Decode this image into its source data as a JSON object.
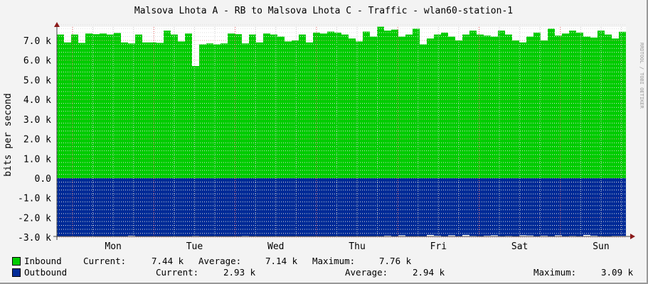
{
  "chart_data": {
    "type": "area",
    "title": "Malsova Lhota A - RB to Malsova Lhota C - Traffic - wlan60-station-1",
    "ylabel": "bits per second",
    "side_label": "RRDTOOL / TOBI OETIKER",
    "ylim": [
      -3000,
      7800
    ],
    "yticks": [
      {
        "v": 7000,
        "l": "7.0 k"
      },
      {
        "v": 6000,
        "l": "6.0 k"
      },
      {
        "v": 5000,
        "l": "5.0 k"
      },
      {
        "v": 4000,
        "l": "4.0 k"
      },
      {
        "v": 3000,
        "l": "3.0 k"
      },
      {
        "v": 2000,
        "l": "2.0 k"
      },
      {
        "v": 1000,
        "l": "1.0 k"
      },
      {
        "v": 0,
        "l": "0.0"
      },
      {
        "v": -1000,
        "l": "-1.0 k"
      },
      {
        "v": -2000,
        "l": "-2.0 k"
      },
      {
        "v": -3000,
        "l": "-3.0 k"
      }
    ],
    "xticks": [
      "Mon",
      "Tue",
      "Wed",
      "Thu",
      "Fri",
      "Sat",
      "Sun"
    ],
    "grid": true,
    "series": [
      {
        "name": "Inbound",
        "color": "#00cc00",
        "values": [
          7300,
          6900,
          7300,
          6880,
          7350,
          7320,
          7350,
          7300,
          7380,
          6900,
          6850,
          7300,
          6900,
          6900,
          6880,
          7500,
          7300,
          6950,
          7350,
          5700,
          6800,
          6850,
          6800,
          6850,
          7350,
          7320,
          6850,
          7300,
          6900,
          7350,
          7300,
          7200,
          6950,
          7000,
          7300,
          6900,
          7400,
          7350,
          7450,
          7400,
          7300,
          7100,
          6950,
          7450,
          7200,
          7700,
          7500,
          7550,
          7200,
          7300,
          7600,
          6800,
          7100,
          7300,
          7400,
          7200,
          7000,
          7300,
          7500,
          7300,
          7250,
          7200,
          7500,
          7300,
          7000,
          6900,
          7200,
          7400,
          7000,
          7600,
          7250,
          7350,
          7500,
          7400,
          7200,
          7150,
          7500,
          7300,
          7100,
          7440
        ]
      },
      {
        "name": "Outbound",
        "color": "#002a97",
        "values": [
          -2950,
          -2960,
          -2940,
          -2950,
          -2960,
          -2950,
          -2940,
          -2960,
          -2950,
          -2950,
          -2920,
          -2950,
          -2960,
          -2950,
          -2940,
          -2950,
          -2960,
          -2950,
          -2940,
          -2930,
          -2950,
          -2960,
          -2950,
          -2940,
          -2950,
          -2960,
          -2930,
          -2950,
          -2940,
          -2950,
          -2960,
          -2950,
          -2940,
          -2950,
          -2960,
          -2950,
          -2940,
          -2950,
          -2960,
          -2950,
          -2940,
          -2950,
          -2960,
          -2950,
          -2940,
          -2950,
          -2920,
          -2950,
          -2900,
          -2940,
          -2950,
          -2940,
          -2880,
          -2920,
          -2950,
          -2900,
          -2940,
          -2880,
          -2930,
          -2950,
          -2920,
          -2900,
          -2940,
          -2930,
          -2950,
          -2900,
          -2910,
          -2940,
          -2920,
          -2950,
          -2900,
          -2940,
          -2930,
          -2950,
          -2880,
          -2920,
          -2950,
          -2940,
          -2930,
          -2930
        ]
      }
    ]
  },
  "legend": {
    "inbound": {
      "name": "Inbound",
      "current_label": "Current:",
      "current": "7.44 k",
      "average_label": "Average:",
      "average": "7.14 k",
      "maximum_label": "Maximum:",
      "maximum": "7.76 k"
    },
    "outbound": {
      "name": "Outbound",
      "current_label": "Current:",
      "current": "2.93 k",
      "average_label": "Average:",
      "average": "2.94 k",
      "maximum_label": "Maximum:",
      "maximum": "3.09 k"
    }
  }
}
